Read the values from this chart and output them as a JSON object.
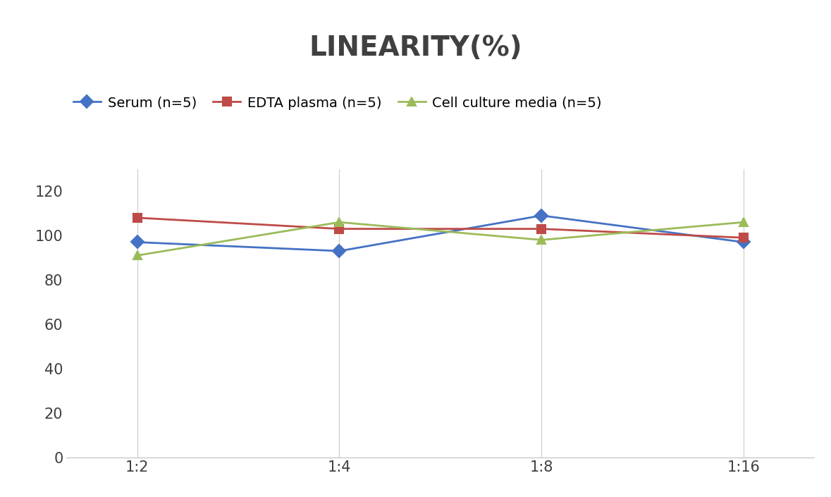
{
  "title": "LINEARITY(%)",
  "x_labels": [
    "1:2",
    "1:4",
    "1:8",
    "1:16"
  ],
  "x_positions": [
    0,
    1,
    2,
    3
  ],
  "series": [
    {
      "name": "Serum (n=5)",
      "values": [
        97,
        93,
        109,
        97
      ],
      "color": "#4472C4",
      "marker": "D",
      "marker_color": "#4472C4"
    },
    {
      "name": "EDTA plasma (n=5)",
      "values": [
        108,
        103,
        103,
        99
      ],
      "color": "#BE4B48",
      "marker": "s",
      "marker_color": "#BE4B48"
    },
    {
      "name": "Cell culture media (n=5)",
      "values": [
        91,
        106,
        98,
        106
      ],
      "color": "#9BBB59",
      "marker": "^",
      "marker_color": "#9BBB59"
    }
  ],
  "ylim": [
    0,
    130
  ],
  "yticks": [
    0,
    20,
    40,
    60,
    80,
    100,
    120
  ],
  "title_fontsize": 28,
  "title_color": "#404040",
  "legend_fontsize": 14,
  "tick_fontsize": 15,
  "background_color": "#ffffff",
  "grid_color": "#d3d3d3",
  "spine_color": "#c0c0c0"
}
